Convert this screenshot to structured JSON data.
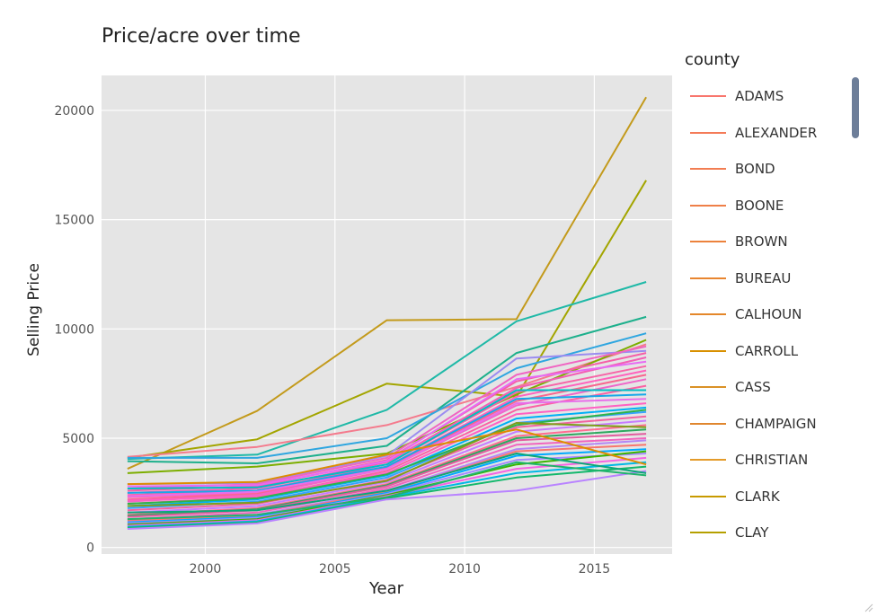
{
  "chart_data": {
    "type": "line",
    "title": "Price/acre over time",
    "xlabel": "Year",
    "ylabel": "Selling Price",
    "xlim": [
      1996,
      2018
    ],
    "ylim": [
      -300,
      21600
    ],
    "x_ticks": [
      2000,
      2005,
      2010,
      2015
    ],
    "y_ticks": [
      0,
      5000,
      10000,
      15000,
      20000
    ],
    "x": [
      1997,
      2002,
      2007,
      2012,
      2017
    ],
    "grid": true,
    "legend_title": "county",
    "legend_position": "right",
    "legend_entries": [
      {
        "name": "ADAMS",
        "color": "#F8766D"
      },
      {
        "name": "ALEXANDER",
        "color": "#F47B58"
      },
      {
        "name": "BOND",
        "color": "#F27D52"
      },
      {
        "name": "BOONE",
        "color": "#EF7F48"
      },
      {
        "name": "BROWN",
        "color": "#EC823C"
      },
      {
        "name": "BUREAU",
        "color": "#E8852F"
      },
      {
        "name": "CALHOUN",
        "color": "#E4872A"
      },
      {
        "name": "CARROLL",
        "color": "#D89000"
      },
      {
        "name": "CASS",
        "color": "#DA9126"
      },
      {
        "name": "CHAMPAIGN",
        "color": "#E0862E"
      },
      {
        "name": "CHRISTIAN",
        "color": "#E49B2A"
      },
      {
        "name": "CLARK",
        "color": "#C89A00"
      },
      {
        "name": "CLAY",
        "color": "#B5A000"
      }
    ],
    "series": [
      {
        "values": [
          3600,
          6250,
          10400,
          10450,
          20600
        ],
        "color": "#C39A1B"
      },
      {
        "values": [
          4100,
          4950,
          7500,
          6900,
          16800
        ],
        "color": "#A3A500"
      },
      {
        "values": [
          4050,
          4250,
          6300,
          10350,
          12150
        ],
        "color": "#1FB9A7"
      },
      {
        "values": [
          3950,
          3850,
          4650,
          8900,
          10550
        ],
        "color": "#1DB08C"
      },
      {
        "values": [
          4150,
          4600,
          5600,
          7350,
          9300
        ],
        "color": "#F47B8D"
      },
      {
        "values": [
          4100,
          4100,
          5000,
          8200,
          9800
        ],
        "color": "#2FA6E0"
      },
      {
        "values": [
          3400,
          3700,
          4300,
          7000,
          9500
        ],
        "color": "#7CAE00"
      },
      {
        "values": [
          2900,
          2950,
          4200,
          8650,
          9000
        ],
        "color": "#9B8CF0"
      },
      {
        "values": [
          2700,
          2900,
          4100,
          7900,
          9200
        ],
        "color": "#F065C2"
      },
      {
        "values": [
          2600,
          2800,
          4000,
          7600,
          8900
        ],
        "color": "#F55FA8"
      },
      {
        "values": [
          2500,
          2700,
          3900,
          7300,
          8700
        ],
        "color": "#F35FB5"
      },
      {
        "values": [
          2800,
          2850,
          3950,
          7700,
          8500
        ],
        "color": "#E76BF3"
      },
      {
        "values": [
          2400,
          2600,
          3800,
          7100,
          8300
        ],
        "color": "#F765A8"
      },
      {
        "values": [
          2300,
          2500,
          3700,
          6900,
          8100
        ],
        "color": "#FF62BC"
      },
      {
        "values": [
          2200,
          2450,
          3650,
          6700,
          7900
        ],
        "color": "#F8668F"
      },
      {
        "values": [
          2100,
          2400,
          3600,
          6500,
          7700
        ],
        "color": "#EF67C9"
      },
      {
        "values": [
          2000,
          2300,
          3500,
          6300,
          7400
        ],
        "color": "#FA62A4"
      },
      {
        "values": [
          2700,
          2750,
          3800,
          7200,
          7200
        ],
        "color": "#00BFC4"
      },
      {
        "values": [
          2500,
          2600,
          3700,
          6800,
          7000
        ],
        "color": "#17A8E8"
      },
      {
        "values": [
          2350,
          2550,
          3600,
          6600,
          6800
        ],
        "color": "#E86EEA"
      },
      {
        "values": [
          2150,
          2350,
          3400,
          6100,
          6600
        ],
        "color": "#FF61C3"
      },
      {
        "values": [
          1900,
          2200,
          3300,
          5900,
          6400
        ],
        "color": "#00B0F6"
      },
      {
        "values": [
          1800,
          2100,
          3200,
          5700,
          6200
        ],
        "color": "#35A2FF"
      },
      {
        "values": [
          2000,
          2250,
          3350,
          5600,
          6300
        ],
        "color": "#2EB34A"
      },
      {
        "values": [
          1700,
          2000,
          3100,
          5500,
          6000
        ],
        "color": "#F263A2"
      },
      {
        "values": [
          1600,
          1900,
          3000,
          5300,
          5800
        ],
        "color": "#C77CFF"
      },
      {
        "values": [
          1500,
          1800,
          2900,
          5100,
          5600
        ],
        "color": "#FF6C91"
      },
      {
        "values": [
          1450,
          1750,
          2850,
          5000,
          5400
        ],
        "color": "#2DA85F"
      },
      {
        "values": [
          1900,
          2050,
          3050,
          5700,
          5500
        ],
        "color": "#7F9E1A"
      },
      {
        "values": [
          1400,
          1700,
          2800,
          4900,
          5200
        ],
        "color": "#E35D9F"
      },
      {
        "values": [
          1300,
          1600,
          2700,
          4700,
          5000
        ],
        "color": "#F165BE"
      },
      {
        "values": [
          1200,
          1500,
          2600,
          4500,
          4900
        ],
        "color": "#B486F5"
      },
      {
        "values": [
          1250,
          1450,
          2550,
          4400,
          4700
        ],
        "color": "#F8766D"
      },
      {
        "values": [
          1150,
          1400,
          2500,
          4200,
          4500
        ],
        "color": "#00A9FF"
      },
      {
        "values": [
          1100,
          1350,
          2450,
          4000,
          4300
        ],
        "color": "#A58AFF"
      },
      {
        "values": [
          1050,
          1300,
          2400,
          3800,
          4400
        ],
        "color": "#39B600"
      },
      {
        "values": [
          1000,
          1250,
          2350,
          3600,
          4100
        ],
        "color": "#F564E3"
      },
      {
        "values": [
          950,
          1200,
          2300,
          3400,
          3900
        ],
        "color": "#00B8E5"
      },
      {
        "values": [
          900,
          1150,
          2250,
          3200,
          3700
        ],
        "color": "#13B86C"
      },
      {
        "values": [
          850,
          1100,
          2200,
          2600,
          3500
        ],
        "color": "#B983FF"
      },
      {
        "values": [
          1300,
          1500,
          2300,
          3900,
          3300
        ],
        "color": "#20B46B"
      },
      {
        "values": [
          1600,
          1700,
          2600,
          4300,
          3400
        ],
        "color": "#0CA779"
      },
      {
        "values": [
          2900,
          3000,
          4250,
          5400,
          3800
        ],
        "color": "#DE8C00"
      }
    ]
  }
}
